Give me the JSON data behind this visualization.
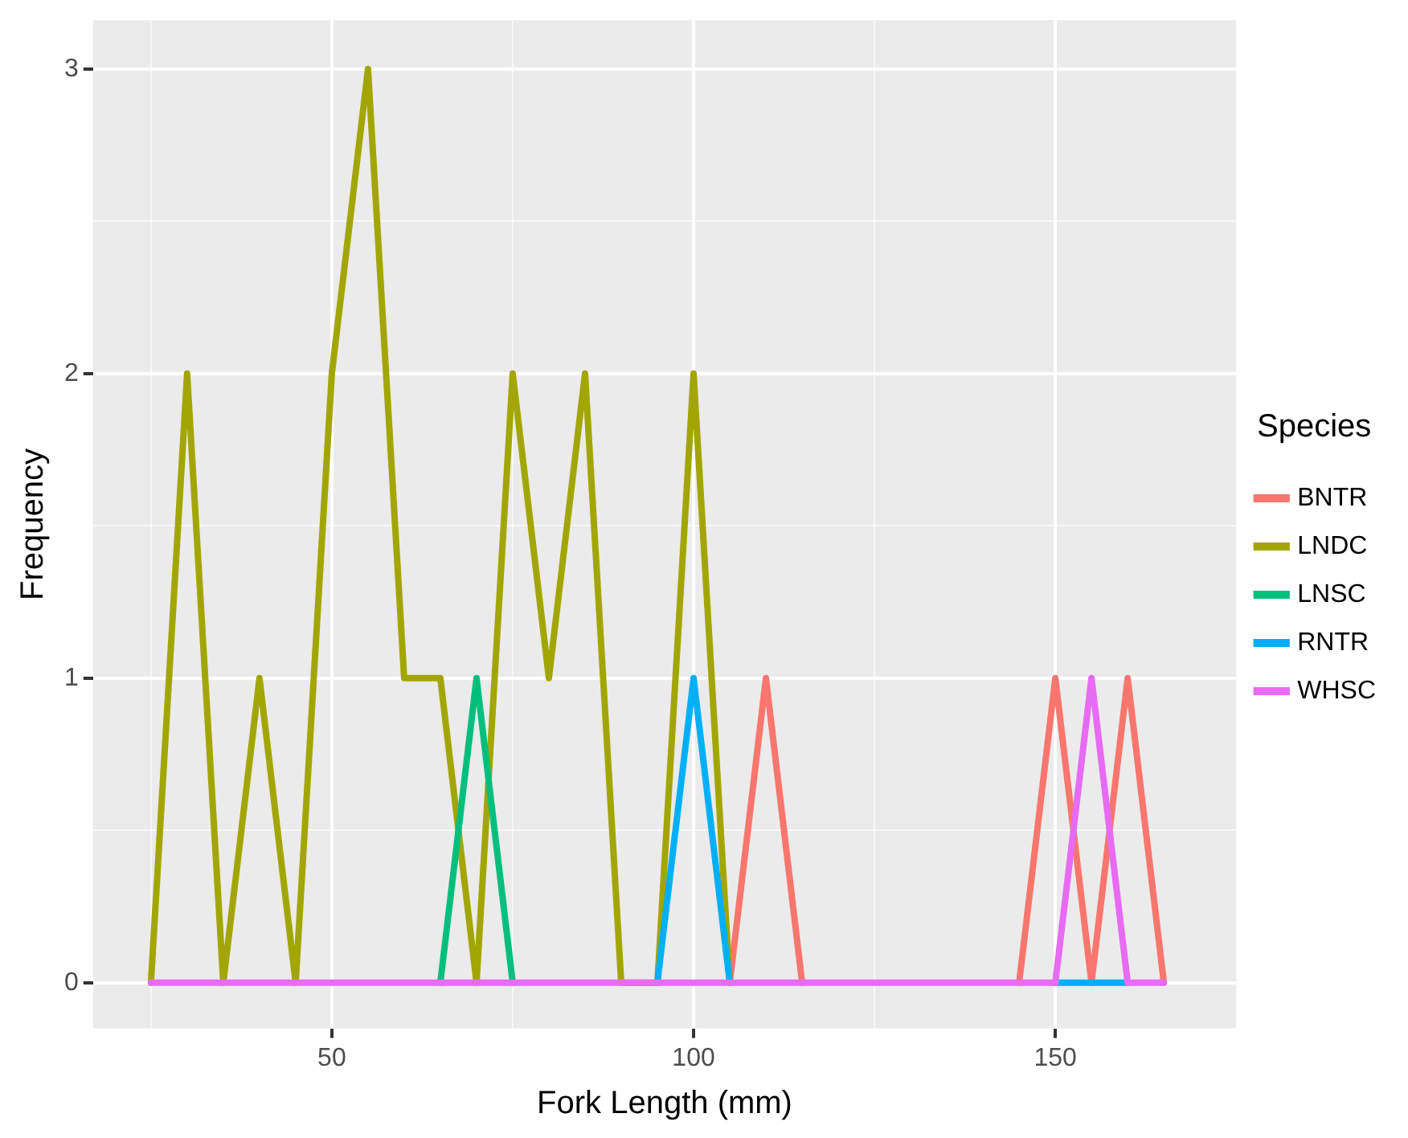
{
  "chart_data": {
    "type": "line",
    "xlabel": "Fork Length (mm)",
    "ylabel": "Frequency",
    "legend_title": "Species",
    "legend": "right",
    "grid": true,
    "marker": "none",
    "line_style": "solid",
    "x": [
      25,
      30,
      35,
      40,
      45,
      50,
      55,
      60,
      65,
      70,
      75,
      80,
      85,
      90,
      95,
      100,
      105,
      110,
      115,
      120,
      125,
      130,
      135,
      140,
      145,
      150,
      155,
      160,
      165
    ],
    "xlim": [
      17,
      175
    ],
    "ylim": [
      -0.15,
      3.16
    ],
    "xticks": [
      {
        "value": 25,
        "label": null
      },
      50,
      {
        "value": 75,
        "label": null
      },
      100,
      {
        "value": 125,
        "label": null
      },
      150
    ],
    "yticks": [
      0,
      {
        "value": 0.5,
        "label": null
      },
      1,
      {
        "value": 1.5,
        "label": null
      },
      2,
      {
        "value": 2.5,
        "label": null
      },
      3
    ],
    "series": [
      {
        "name": "BNTR",
        "color": "#f8766d",
        "values": [
          null,
          null,
          null,
          null,
          null,
          null,
          null,
          null,
          null,
          null,
          null,
          null,
          null,
          null,
          null,
          null,
          0,
          1,
          0,
          null,
          null,
          null,
          null,
          null,
          0,
          1,
          0,
          1,
          0
        ]
      },
      {
        "name": "LNDC",
        "color": "#a3a500",
        "values": [
          0,
          2,
          0,
          1,
          0,
          2,
          3,
          1,
          1,
          0,
          2,
          1,
          2,
          0,
          0,
          2,
          0,
          null,
          null,
          null,
          null,
          null,
          null,
          null,
          null,
          null,
          null,
          null,
          null
        ]
      },
      {
        "name": "LNSC",
        "color": "#00bf7d",
        "values": [
          null,
          null,
          null,
          null,
          null,
          null,
          null,
          null,
          0,
          1,
          0,
          null,
          null,
          null,
          null,
          null,
          null,
          null,
          null,
          null,
          null,
          null,
          null,
          null,
          null,
          null,
          null,
          null,
          null
        ]
      },
      {
        "name": "RNTR",
        "color": "#00b0f6",
        "values": [
          null,
          null,
          null,
          null,
          null,
          null,
          null,
          null,
          null,
          null,
          null,
          null,
          null,
          null,
          0,
          1,
          0,
          null,
          null,
          null,
          null,
          null,
          null,
          null,
          null,
          0,
          0,
          0,
          null
        ]
      },
      {
        "name": "WHSC",
        "color": "#e76bf3",
        "values": [
          0,
          0,
          0,
          0,
          0,
          0,
          0,
          0,
          0,
          0,
          0,
          0,
          0,
          0,
          0,
          0,
          0,
          0,
          0,
          0,
          0,
          0,
          0,
          0,
          0,
          0,
          1,
          0,
          0
        ]
      }
    ]
  }
}
